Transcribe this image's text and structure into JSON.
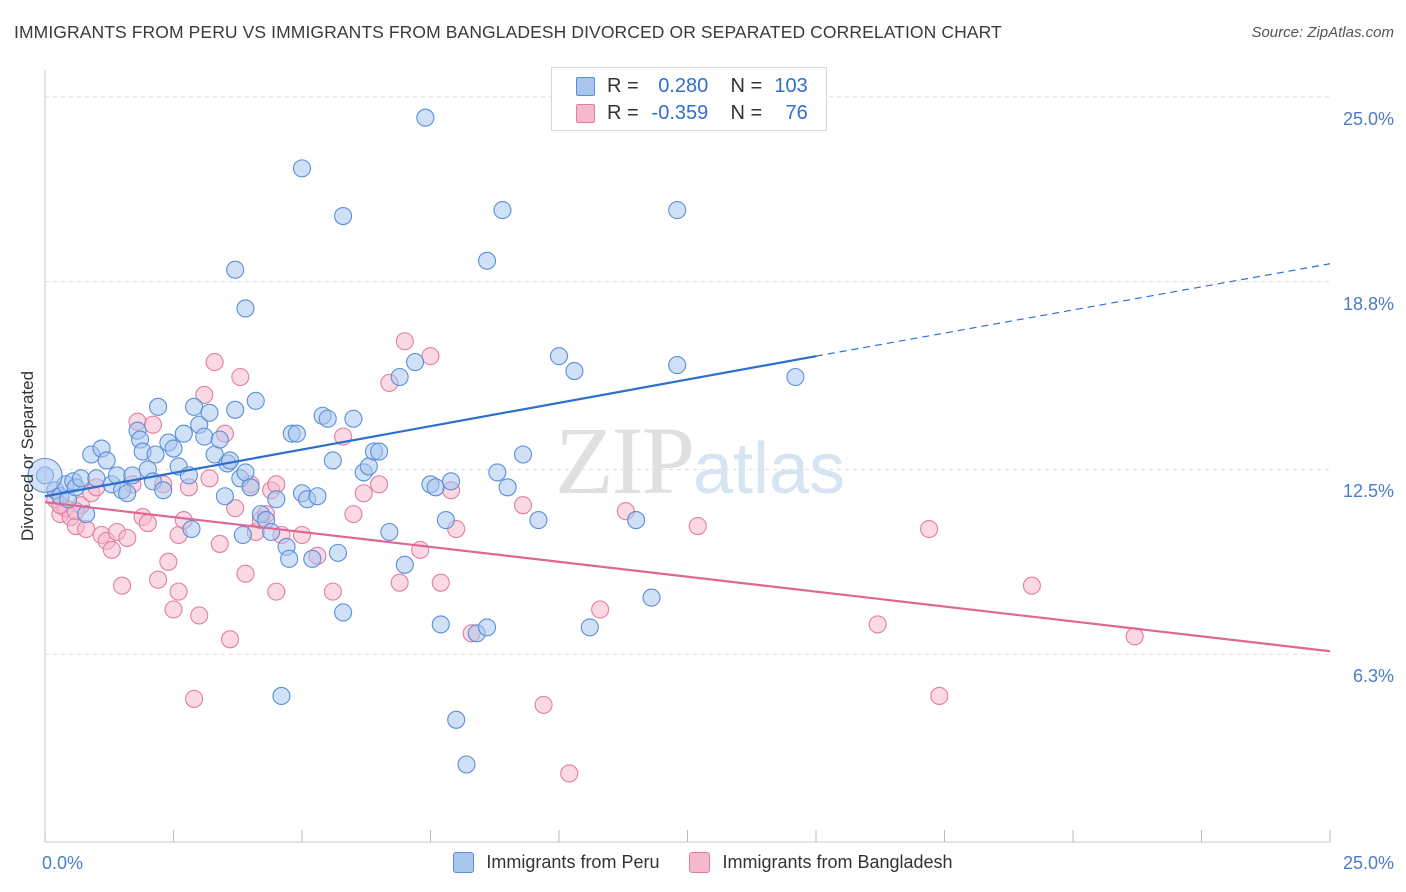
{
  "title": "IMMIGRANTS FROM PERU VS IMMIGRANTS FROM BANGLADESH DIVORCED OR SEPARATED CORRELATION CHART",
  "source": "Source: ZipAtlas.com",
  "watermark": {
    "zip": "ZIP",
    "atlas": "atlas"
  },
  "legend": {
    "rows": [
      {
        "r_label": "R =",
        "r_value": "0.280",
        "n_label": "N =",
        "n_value": "103"
      },
      {
        "r_label": "R =",
        "r_value": "-0.359",
        "n_label": "N =",
        "n_value": "76"
      }
    ]
  },
  "colors": {
    "peru_fill": "#a9c6ef",
    "peru_stroke": "#5a8fd8",
    "peru_line": "#2b6fcf",
    "bangladesh_fill": "#f5b8cd",
    "bangladesh_stroke": "#e07fa2",
    "bangladesh_line": "#e06793",
    "axis_text": "#4a7cc7",
    "grid": "#dddddd"
  },
  "chart_data": {
    "type": "scatter",
    "xlabel": "",
    "ylabel": "Divorced or Separated",
    "xlim": [
      0,
      25
    ],
    "ylim": [
      0,
      25.9
    ],
    "x_tick_labels": [
      {
        "value": 0,
        "label": "0.0%"
      },
      {
        "value": 25,
        "label": "25.0%"
      }
    ],
    "y_ticks": [
      {
        "value": 6.3,
        "label": "6.3%"
      },
      {
        "value": 12.5,
        "label": "12.5%"
      },
      {
        "value": 18.8,
        "label": "18.8%"
      },
      {
        "value": 25.0,
        "label": "25.0%"
      }
    ],
    "grid": true,
    "legend_position": "bottom",
    "series": [
      {
        "name": "Immigrants from Peru",
        "color": "#5a8fd8",
        "trend": {
          "x": [
            0,
            15
          ],
          "y": [
            11.6,
            16.3
          ],
          "extended_to": [
            25,
            19.4
          ]
        },
        "points": [
          [
            0,
            12.3
          ],
          [
            0.2,
            11.8
          ],
          [
            0.3,
            11.6
          ],
          [
            0.4,
            12.0
          ],
          [
            0.45,
            11.5
          ],
          [
            0.55,
            12.1
          ],
          [
            0.6,
            11.9
          ],
          [
            0.7,
            12.2
          ],
          [
            0.8,
            11.0
          ],
          [
            0.9,
            13.0
          ],
          [
            1.0,
            12.2
          ],
          [
            1.1,
            13.2
          ],
          [
            1.2,
            12.8
          ],
          [
            1.3,
            12.0
          ],
          [
            1.4,
            12.3
          ],
          [
            1.5,
            11.8
          ],
          [
            1.6,
            11.7
          ],
          [
            1.7,
            12.3
          ],
          [
            1.8,
            13.8
          ],
          [
            1.85,
            13.5
          ],
          [
            1.9,
            13.1
          ],
          [
            2.0,
            12.5
          ],
          [
            2.1,
            12.1
          ],
          [
            2.15,
            13.0
          ],
          [
            2.2,
            14.6
          ],
          [
            2.3,
            11.8
          ],
          [
            2.4,
            13.4
          ],
          [
            2.5,
            13.2
          ],
          [
            2.6,
            12.6
          ],
          [
            2.7,
            13.7
          ],
          [
            2.8,
            12.3
          ],
          [
            2.85,
            10.5
          ],
          [
            2.9,
            14.6
          ],
          [
            3.0,
            14.0
          ],
          [
            3.1,
            13.6
          ],
          [
            3.2,
            14.4
          ],
          [
            3.3,
            13.0
          ],
          [
            3.4,
            13.5
          ],
          [
            3.5,
            11.6
          ],
          [
            3.55,
            12.7
          ],
          [
            3.6,
            12.8
          ],
          [
            3.7,
            14.5
          ],
          [
            3.8,
            12.2
          ],
          [
            3.85,
            10.3
          ],
          [
            3.9,
            12.4
          ],
          [
            4.0,
            11.9
          ],
          [
            4.1,
            14.8
          ],
          [
            4.2,
            11.0
          ],
          [
            4.3,
            10.8
          ],
          [
            4.4,
            10.4
          ],
          [
            4.5,
            11.5
          ],
          [
            4.7,
            9.9
          ],
          [
            4.75,
            9.5
          ],
          [
            4.8,
            13.7
          ],
          [
            4.9,
            13.7
          ],
          [
            5.0,
            11.7
          ],
          [
            5.1,
            11.5
          ],
          [
            5.2,
            9.5
          ],
          [
            5.3,
            11.6
          ],
          [
            5.4,
            14.3
          ],
          [
            5.5,
            14.2
          ],
          [
            5.6,
            12.8
          ],
          [
            5.7,
            9.7
          ],
          [
            5.8,
            7.7
          ],
          [
            6.0,
            14.2
          ],
          [
            6.2,
            12.4
          ],
          [
            6.3,
            12.6
          ],
          [
            6.4,
            13.1
          ],
          [
            6.5,
            13.1
          ],
          [
            6.7,
            10.4
          ],
          [
            6.9,
            15.6
          ],
          [
            7.0,
            9.3
          ],
          [
            7.2,
            16.1
          ],
          [
            7.4,
            24.3
          ],
          [
            7.5,
            12.0
          ],
          [
            7.6,
            11.9
          ],
          [
            7.7,
            7.3
          ],
          [
            7.8,
            10.8
          ],
          [
            7.9,
            12.1
          ],
          [
            8.0,
            4.1
          ],
          [
            8.2,
            2.6
          ],
          [
            8.4,
            7.0
          ],
          [
            8.6,
            7.2
          ],
          [
            8.8,
            12.4
          ],
          [
            9.0,
            11.9
          ],
          [
            9.3,
            13.0
          ],
          [
            10.0,
            16.3
          ],
          [
            10.3,
            15.8
          ],
          [
            10.6,
            7.2
          ],
          [
            11.5,
            10.8
          ],
          [
            11.8,
            8.2
          ],
          [
            12.3,
            16.0
          ],
          [
            5.0,
            22.6
          ],
          [
            5.8,
            21.0
          ],
          [
            8.6,
            19.5
          ],
          [
            8.9,
            21.2
          ],
          [
            9.6,
            10.8
          ],
          [
            12.3,
            21.2
          ],
          [
            14.6,
            15.6
          ],
          [
            3.7,
            19.2
          ],
          [
            3.9,
            17.9
          ],
          [
            13.5,
            25.0
          ],
          [
            4.6,
            4.9
          ]
        ]
      },
      {
        "name": "Immigrants from Bangladesh",
        "color": "#e07fa2",
        "trend": {
          "x": [
            0,
            25
          ],
          "y": [
            11.4,
            6.4
          ]
        },
        "points": [
          [
            0.2,
            11.5
          ],
          [
            0.3,
            11.0
          ],
          [
            0.4,
            11.2
          ],
          [
            0.5,
            10.9
          ],
          [
            0.6,
            10.6
          ],
          [
            0.7,
            11.3
          ],
          [
            0.8,
            10.5
          ],
          [
            0.9,
            11.7
          ],
          [
            1.0,
            11.9
          ],
          [
            1.1,
            10.3
          ],
          [
            1.2,
            10.1
          ],
          [
            1.3,
            9.8
          ],
          [
            1.4,
            10.4
          ],
          [
            1.5,
            8.6
          ],
          [
            1.6,
            10.2
          ],
          [
            1.7,
            12.0
          ],
          [
            1.8,
            14.1
          ],
          [
            1.9,
            10.9
          ],
          [
            2.0,
            10.7
          ],
          [
            2.1,
            14.0
          ],
          [
            2.2,
            8.8
          ],
          [
            2.3,
            12.0
          ],
          [
            2.4,
            9.4
          ],
          [
            2.5,
            7.8
          ],
          [
            2.6,
            10.3
          ],
          [
            2.7,
            10.8
          ],
          [
            2.8,
            11.9
          ],
          [
            2.9,
            4.8
          ],
          [
            3.0,
            7.6
          ],
          [
            3.1,
            15.0
          ],
          [
            3.2,
            12.2
          ],
          [
            3.3,
            16.1
          ],
          [
            3.4,
            10.0
          ],
          [
            3.5,
            13.7
          ],
          [
            3.6,
            6.8
          ],
          [
            3.7,
            11.2
          ],
          [
            3.8,
            15.6
          ],
          [
            3.9,
            9.0
          ],
          [
            4.0,
            12.0
          ],
          [
            4.1,
            10.4
          ],
          [
            4.2,
            10.8
          ],
          [
            4.3,
            11.0
          ],
          [
            4.4,
            11.8
          ],
          [
            4.5,
            12.0
          ],
          [
            4.6,
            10.3
          ],
          [
            5.0,
            10.3
          ],
          [
            5.3,
            9.6
          ],
          [
            5.6,
            8.4
          ],
          [
            5.8,
            13.6
          ],
          [
            6.0,
            11.0
          ],
          [
            6.2,
            11.7
          ],
          [
            6.5,
            12.0
          ],
          [
            6.7,
            15.4
          ],
          [
            6.9,
            8.7
          ],
          [
            7.0,
            16.8
          ],
          [
            7.3,
            9.8
          ],
          [
            7.5,
            16.3
          ],
          [
            7.7,
            8.7
          ],
          [
            7.9,
            11.8
          ],
          [
            8.0,
            10.5
          ],
          [
            8.3,
            7.0
          ],
          [
            9.3,
            11.3
          ],
          [
            9.7,
            4.6
          ],
          [
            10.2,
            2.3
          ],
          [
            10.8,
            7.8
          ],
          [
            11.3,
            11.1
          ],
          [
            12.7,
            10.6
          ],
          [
            16.2,
            7.3
          ],
          [
            17.2,
            10.5
          ],
          [
            17.4,
            4.9
          ],
          [
            19.2,
            8.6
          ],
          [
            21.2,
            6.9
          ],
          [
            0.3,
            11.3
          ],
          [
            0.6,
            11.1
          ],
          [
            2.6,
            8.4
          ],
          [
            4.5,
            8.4
          ]
        ]
      }
    ]
  }
}
